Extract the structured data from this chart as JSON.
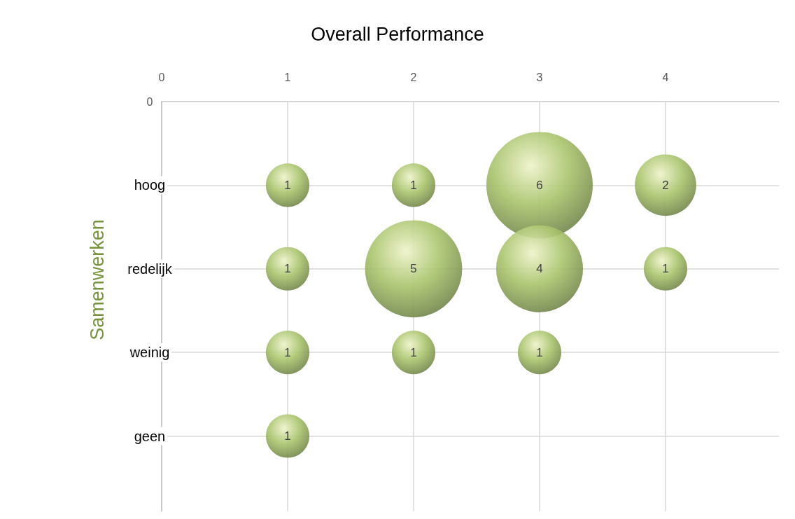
{
  "chart_data": {
    "type": "bubble",
    "orientation": "horizontal",
    "title": "Overall Performance",
    "ylabel": "Samenwerken",
    "categories": [
      "0",
      "hoog",
      "redelijk",
      "weinig",
      "geen"
    ],
    "series": [
      {
        "color": "#a9c46c",
        "values": [
          null,
          1,
          1,
          1,
          1
        ],
        "sizes": [
          null,
          0.167,
          0.167,
          0.167,
          0.167
        ]
      },
      {
        "color": "#a9c46c",
        "values": [
          null,
          2,
          2,
          2,
          null
        ],
        "sizes": [
          null,
          0.167,
          0.833,
          0.167,
          null
        ]
      },
      {
        "color": "#a9c46c",
        "values": [
          null,
          3,
          3,
          3,
          null
        ],
        "sizes": [
          null,
          1,
          0.667,
          0.167,
          null
        ]
      },
      {
        "color": "#a9c46c",
        "values": [
          null,
          4,
          4,
          null,
          null
        ],
        "sizes": [
          null,
          0.333,
          0.167,
          null,
          null
        ]
      }
    ],
    "xlim": [
      0,
      4.9
    ],
    "xticks": [
      0,
      1,
      2,
      3,
      4
    ],
    "annotations": [
      {
        "text": "1",
        "x": 1,
        "y": "hoog"
      },
      {
        "text": "1",
        "x": 2,
        "y": "hoog"
      },
      {
        "text": "6",
        "x": 3,
        "y": "hoog"
      },
      {
        "text": "2",
        "x": 4,
        "y": "hoog"
      },
      {
        "text": "1",
        "x": 1,
        "y": "redelijk"
      },
      {
        "text": "5",
        "x": 2,
        "y": "redelijk"
      },
      {
        "text": "4",
        "x": 3,
        "y": "redelijk"
      },
      {
        "text": "1",
        "x": 4,
        "y": "redelijk"
      },
      {
        "text": "1",
        "x": 1,
        "y": "weinig"
      },
      {
        "text": "1",
        "x": 2,
        "y": "weinig"
      },
      {
        "text": "1",
        "x": 3,
        "y": "weinig"
      },
      {
        "text": "1",
        "x": 1,
        "y": "geen"
      }
    ],
    "grid": true,
    "marker": "circle"
  }
}
